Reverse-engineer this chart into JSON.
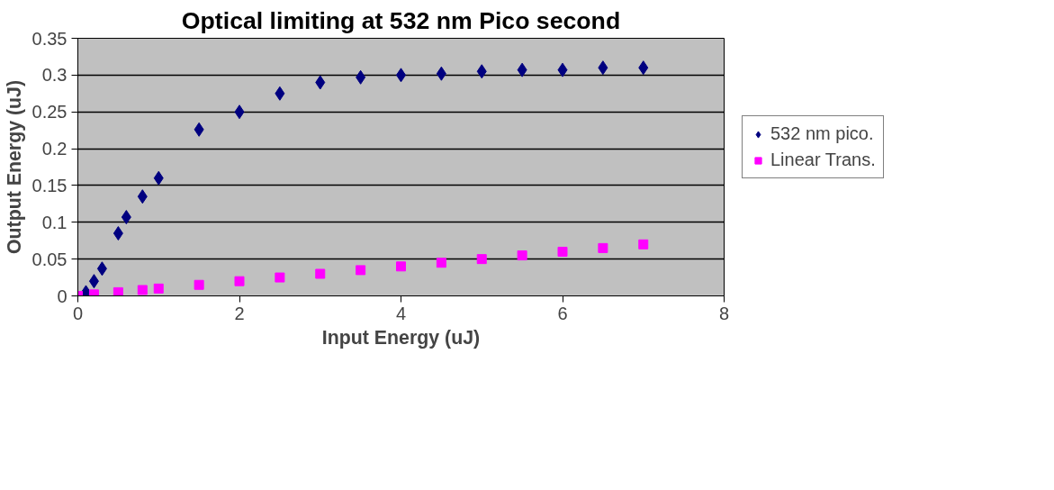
{
  "chart_data": {
    "type": "scatter",
    "title": "Optical limiting at 532 nm Pico second",
    "xlabel": "Input Energy (uJ)",
    "ylabel": "Output Energy (uJ)",
    "series": [
      {
        "name": "532 nm pico.",
        "color": "#000080",
        "marker": "diamond",
        "x": [
          0.1,
          0.2,
          0.3,
          0.5,
          0.6,
          0.8,
          1,
          1.5,
          2,
          2.5,
          3,
          3.5,
          4,
          4.5,
          5,
          5.5,
          6,
          6.5,
          7
        ],
        "values": [
          0.005,
          0.02,
          0.037,
          0.085,
          0.107,
          0.135,
          0.16,
          0.226,
          0.25,
          0.275,
          0.29,
          0.297,
          0.3,
          0.302,
          0.305,
          0.307,
          0.307,
          0.31,
          0.31
        ]
      },
      {
        "name": "Linear Trans.",
        "color": "#ff00ff",
        "marker": "square",
        "x": [
          0,
          0.2,
          0.5,
          0.8,
          1,
          1.5,
          2,
          2.5,
          3,
          3.5,
          4,
          4.5,
          5,
          5.5,
          6,
          6.5,
          7
        ],
        "values": [
          0,
          0.002,
          0.005,
          0.008,
          0.01,
          0.015,
          0.02,
          0.025,
          0.03,
          0.035,
          0.04,
          0.045,
          0.05,
          0.055,
          0.06,
          0.065,
          0.07
        ]
      }
    ],
    "xlim": [
      0,
      8
    ],
    "xticks": [
      0,
      2,
      4,
      6,
      8
    ],
    "ylim": [
      0,
      0.35
    ],
    "yticks": [
      0,
      0.05,
      0.1,
      0.15,
      0.2,
      0.25,
      0.3,
      0.35
    ],
    "grid": "y",
    "legend": "right"
  }
}
